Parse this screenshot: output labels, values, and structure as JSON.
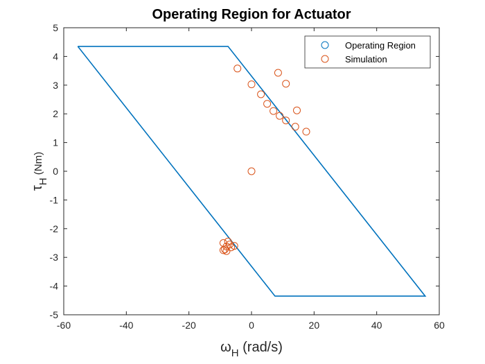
{
  "chart_data": {
    "type": "line",
    "title": "Operating Region for Actuator",
    "xlabel": {
      "symbol": "ω",
      "sub": "H",
      "unit": " (rad/s)"
    },
    "ylabel": {
      "symbol": "τ",
      "sub": "H",
      "unit": " (Nm)"
    },
    "xlim": [
      -60,
      60
    ],
    "ylim": [
      -5,
      5
    ],
    "xticks": [
      -60,
      -40,
      -20,
      0,
      20,
      40,
      60
    ],
    "yticks": [
      -5,
      -4,
      -3,
      -2,
      -1,
      0,
      1,
      2,
      3,
      4,
      5
    ],
    "grid": false,
    "legend_position": "top-right",
    "series": [
      {
        "name": "Operating Region",
        "kind": "line",
        "color": "#0072BD",
        "x": [
          -55.5,
          -7.5,
          55.5,
          7.5,
          -55.5
        ],
        "y": [
          4.35,
          4.35,
          -4.35,
          -4.35,
          4.35
        ]
      },
      {
        "name": "Simulation",
        "kind": "scatter",
        "color": "#D95319",
        "x": [
          -4.5,
          8.5,
          0,
          11,
          3,
          5,
          7,
          14.5,
          9,
          11,
          14,
          17.5,
          0,
          -7.5,
          -9,
          -8.5,
          -7,
          -6.5,
          -8,
          -5.5,
          -9,
          -8
        ],
        "y": [
          3.58,
          3.43,
          3.03,
          3.05,
          2.68,
          2.35,
          2.1,
          2.12,
          1.93,
          1.77,
          1.55,
          1.38,
          0.0,
          -2.45,
          -2.5,
          -2.72,
          -2.55,
          -2.65,
          -2.78,
          -2.6,
          -2.75,
          -2.62
        ]
      }
    ]
  }
}
